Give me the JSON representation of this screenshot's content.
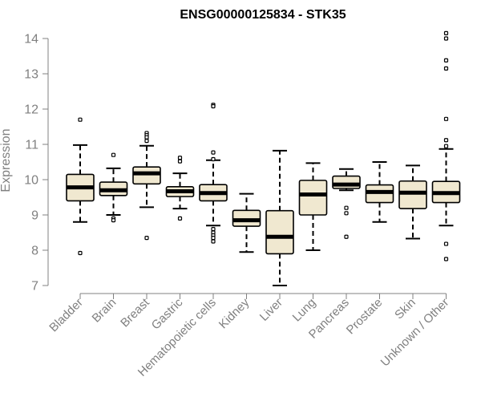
{
  "chart_data": {
    "type": "boxplot",
    "title": "ENSG00000125834 - STK35",
    "xlabel": "",
    "ylabel": "Expression",
    "ylim": [
      7,
      14
    ],
    "yticks": [
      7,
      8,
      9,
      10,
      11,
      12,
      13,
      14
    ],
    "grid": false,
    "colors": {
      "box_fill": "#f0e8d0",
      "stroke": "#000000",
      "axis": "#808080"
    },
    "categories": [
      "Bladder",
      "Brain",
      "Breast",
      "Gastric",
      "Hematopoietic cells",
      "Kidney",
      "Liver",
      "Lung",
      "Pancreas",
      "Prostate",
      "Skin",
      "Unknown / Other"
    ],
    "boxes": [
      {
        "category": "Bladder",
        "whisker_low": 8.8,
        "q1": 9.4,
        "median": 9.78,
        "q3": 10.15,
        "whisker_high": 10.98,
        "outliers": [
          11.7,
          7.92
        ]
      },
      {
        "category": "Brain",
        "whisker_low": 9.0,
        "q1": 9.55,
        "median": 9.7,
        "q3": 9.93,
        "whisker_high": 10.32,
        "outliers": [
          10.7,
          8.9,
          8.85
        ]
      },
      {
        "category": "Breast",
        "whisker_low": 9.22,
        "q1": 9.88,
        "median": 10.18,
        "q3": 10.36,
        "whisker_high": 10.96,
        "outliers": [
          11.32,
          11.26,
          11.2,
          11.1,
          8.35
        ]
      },
      {
        "category": "Gastric",
        "whisker_low": 9.18,
        "q1": 9.52,
        "median": 9.67,
        "q3": 9.8,
        "whisker_high": 10.18,
        "outliers": [
          10.62,
          10.52,
          8.9
        ]
      },
      {
        "category": "Hematopoietic cells",
        "whisker_low": 8.7,
        "q1": 9.4,
        "median": 9.62,
        "q3": 9.86,
        "whisker_high": 10.55,
        "outliers": [
          12.12,
          12.08,
          10.77,
          10.58,
          8.6,
          8.5,
          8.42,
          8.35,
          8.25
        ]
      },
      {
        "category": "Kidney",
        "whisker_low": 7.95,
        "q1": 8.68,
        "median": 8.85,
        "q3": 9.13,
        "whisker_high": 9.6,
        "outliers": []
      },
      {
        "category": "Liver",
        "whisker_low": 7.0,
        "q1": 7.9,
        "median": 8.38,
        "q3": 9.12,
        "whisker_high": 10.82,
        "outliers": []
      },
      {
        "category": "Lung",
        "whisker_low": 8.0,
        "q1": 9.0,
        "median": 9.58,
        "q3": 9.98,
        "whisker_high": 10.47,
        "outliers": []
      },
      {
        "category": "Pancreas",
        "whisker_low": 9.7,
        "q1": 9.75,
        "median": 9.86,
        "q3": 10.1,
        "whisker_high": 10.3,
        "outliers": [
          9.2,
          9.05,
          8.38
        ]
      },
      {
        "category": "Prostate",
        "whisker_low": 8.8,
        "q1": 9.35,
        "median": 9.65,
        "q3": 9.85,
        "whisker_high": 10.5,
        "outliers": []
      },
      {
        "category": "Skin",
        "whisker_low": 8.33,
        "q1": 9.18,
        "median": 9.63,
        "q3": 9.96,
        "whisker_high": 10.4,
        "outliers": []
      },
      {
        "category": "Unknown / Other",
        "whisker_low": 8.7,
        "q1": 9.35,
        "median": 9.62,
        "q3": 9.95,
        "whisker_high": 10.87,
        "outliers": [
          14.15,
          14.0,
          13.38,
          13.15,
          11.72,
          11.12,
          10.95,
          8.18,
          7.75
        ]
      }
    ]
  }
}
